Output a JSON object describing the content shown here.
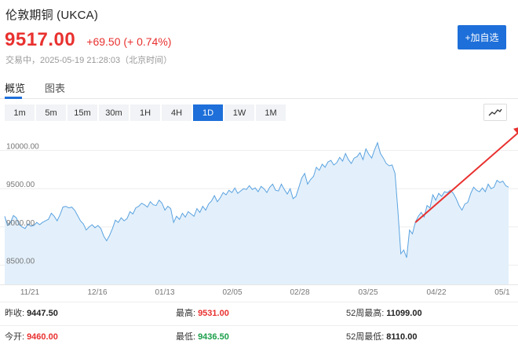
{
  "header": {
    "title": "伦敦期铜 (UKCA)",
    "price": "9517.00",
    "change": "+69.50 (+ 0.74%)",
    "status": "交易中，2025-05-19 21:28:03（北京时间）"
  },
  "actions": {
    "add_watch_label": "+加自选"
  },
  "tabs": [
    {
      "label": "概览",
      "active": true
    },
    {
      "label": "图表",
      "active": false
    }
  ],
  "periods": [
    {
      "label": "1m",
      "active": false
    },
    {
      "label": "5m",
      "active": false
    },
    {
      "label": "15m",
      "active": false
    },
    {
      "label": "30m",
      "active": false
    },
    {
      "label": "1H",
      "active": false
    },
    {
      "label": "4H",
      "active": false
    },
    {
      "label": "1D",
      "active": true
    },
    {
      "label": "1W",
      "active": false
    },
    {
      "label": "1M",
      "active": false
    }
  ],
  "chart_type_icon": "line-chart-icon",
  "chart_data": {
    "type": "area",
    "ylim": [
      8250,
      10200
    ],
    "yticks": [
      {
        "value": 10000,
        "label": "10000.00"
      },
      {
        "value": 9500,
        "label": "9500.00"
      },
      {
        "value": 9000,
        "label": "9000.00"
      },
      {
        "value": 8500,
        "label": "8500.00"
      }
    ],
    "xticks": [
      "11/21",
      "12/16",
      "01/13",
      "02/05",
      "02/28",
      "03/25",
      "04/22",
      "05/1"
    ],
    "values": [
      9140,
      9020,
      9060,
      9150,
      9120,
      9030,
      9000,
      8980,
      9040,
      9010,
      9020,
      9060,
      9030,
      9060,
      9080,
      9100,
      9180,
      9140,
      9080,
      9160,
      9260,
      9270,
      9250,
      9260,
      9220,
      9150,
      9080,
      9040,
      8960,
      9000,
      9030,
      8990,
      9020,
      8980,
      8880,
      8820,
      8890,
      8980,
      9090,
      9060,
      9120,
      9080,
      9110,
      9200,
      9170,
      9250,
      9270,
      9310,
      9290,
      9260,
      9330,
      9290,
      9280,
      9350,
      9310,
      9220,
      9270,
      9240,
      9060,
      9140,
      9100,
      9180,
      9130,
      9200,
      9170,
      9140,
      9240,
      9190,
      9270,
      9220,
      9300,
      9340,
      9410,
      9330,
      9380,
      9450,
      9420,
      9480,
      9450,
      9510,
      9440,
      9470,
      9500,
      9490,
      9540,
      9490,
      9510,
      9460,
      9530,
      9500,
      9450,
      9520,
      9560,
      9480,
      9470,
      9560,
      9490,
      9430,
      9500,
      9370,
      9400,
      9520,
      9640,
      9700,
      9560,
      9620,
      9660,
      9780,
      9740,
      9820,
      9780,
      9850,
      9870,
      9810,
      9840,
      9910,
      9860,
      9960,
      9880,
      9830,
      9900,
      9920,
      9970,
      9880,
      10020,
      9950,
      9900,
      10010,
      10100,
      9960,
      9900,
      9830,
      9800,
      9810,
      9700,
      9210,
      8650,
      8700,
      8600,
      8960,
      8910,
      9060,
      9140,
      9190,
      9130,
      9280,
      9250,
      9420,
      9350,
      9440,
      9400,
      9460,
      9450,
      9480,
      9440,
      9370,
      9280,
      9220,
      9300,
      9320,
      9440,
      9520,
      9480,
      9460,
      9510,
      9460,
      9560,
      9500,
      9520,
      9610,
      9580,
      9600,
      9540,
      9520
    ]
  },
  "annotation": {
    "arrow_color": "#e8312f",
    "arrow_from_index": 141,
    "arrow_to_index": 179
  },
  "stats": {
    "prev_close_label": "昨收:",
    "prev_close": "9447.50",
    "high_label": "最高:",
    "high": "9531.00",
    "high52_label": "52周最高:",
    "high52": "11099.00",
    "open_label": "今开:",
    "open": "9460.00",
    "low_label": "最低:",
    "low": "9436.50",
    "low52_label": "52周最低:",
    "low52": "8110.00"
  },
  "colors": {
    "accent": "#1e6fd9",
    "up": "#e8312f",
    "down": "#1a9e49",
    "area_fill": "#e3f0fb",
    "line": "#5ba3e0"
  }
}
